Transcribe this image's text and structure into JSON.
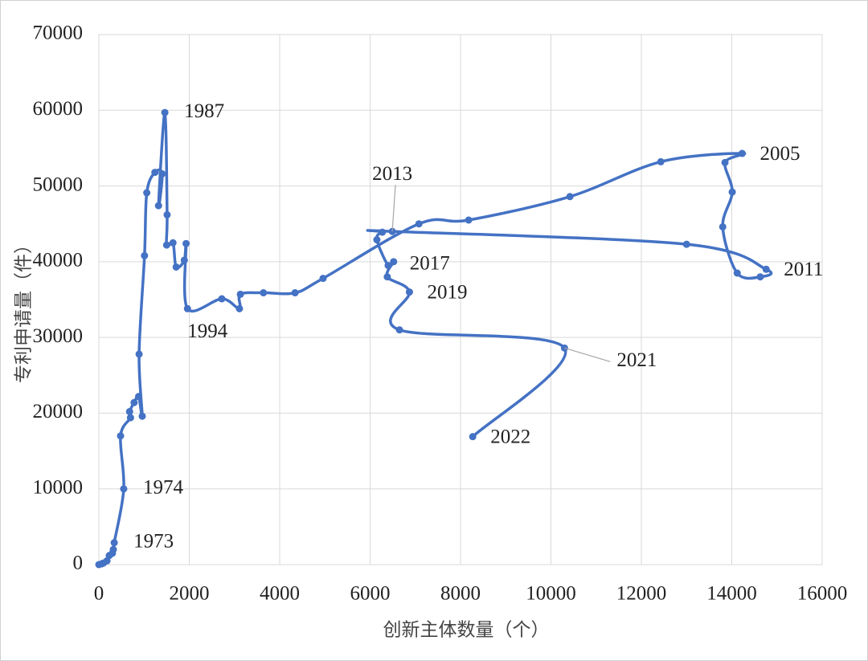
{
  "chart_data": {
    "type": "scatter",
    "smooth": true,
    "color": "#4472c4",
    "x_label": "创新主体数量（个）",
    "y_label": "专利申请量（件）",
    "xlim": [
      0,
      16000
    ],
    "xticks": [
      0,
      2000,
      4000,
      6000,
      8000,
      10000,
      12000,
      14000,
      16000
    ],
    "ylim": [
      0,
      70000
    ],
    "yticks": [
      0,
      10000,
      20000,
      30000,
      40000,
      50000,
      60000,
      70000
    ],
    "grid": true,
    "x": [
      0,
      60,
      100,
      180,
      230,
      300,
      320,
      340,
      550,
      480,
      700,
      680,
      780,
      880,
      960,
      890,
      1010,
      1060,
      1240,
      1400,
      1320,
      1460,
      1510,
      1500,
      1640,
      1710,
      1890,
      1930,
      1960,
      2720,
      3110,
      3130,
      3640,
      4340,
      4960,
      7080,
      8180,
      10420,
      12430,
      14230,
      13850,
      14010,
      13800,
      14120,
      14630,
      14760,
      13000,
      6490,
      6270,
      6150,
      6400,
      6520,
      6380,
      6870,
      6650,
      10300,
      8270
    ],
    "values": [
      0,
      100,
      200,
      500,
      1200,
      1500,
      2000,
      2900,
      10000,
      17000,
      19400,
      20200,
      21400,
      22200,
      19600,
      27800,
      40800,
      49100,
      51800,
      51600,
      47400,
      59700,
      46200,
      42200,
      42500,
      39300,
      40200,
      42400,
      33800,
      35100,
      33800,
      35700,
      35900,
      35900,
      37800,
      45000,
      45500,
      48600,
      53200,
      54300,
      53100,
      49200,
      44600,
      38500,
      38000,
      39000,
      42300,
      44000,
      43900,
      42900,
      39500,
      40000,
      38000,
      36000,
      31000,
      28600,
      16900
    ],
    "labels": [
      null,
      null,
      null,
      null,
      null,
      null,
      null,
      "1973",
      "1974",
      null,
      null,
      null,
      null,
      null,
      null,
      null,
      null,
      null,
      null,
      null,
      null,
      "1987",
      null,
      null,
      null,
      null,
      null,
      null,
      "1994",
      null,
      null,
      null,
      null,
      null,
      null,
      null,
      null,
      null,
      null,
      "2005",
      null,
      null,
      null,
      null,
      null,
      "2011",
      null,
      "2013",
      null,
      null,
      null,
      "2017",
      null,
      "2019",
      null,
      "2021",
      "2022"
    ]
  }
}
